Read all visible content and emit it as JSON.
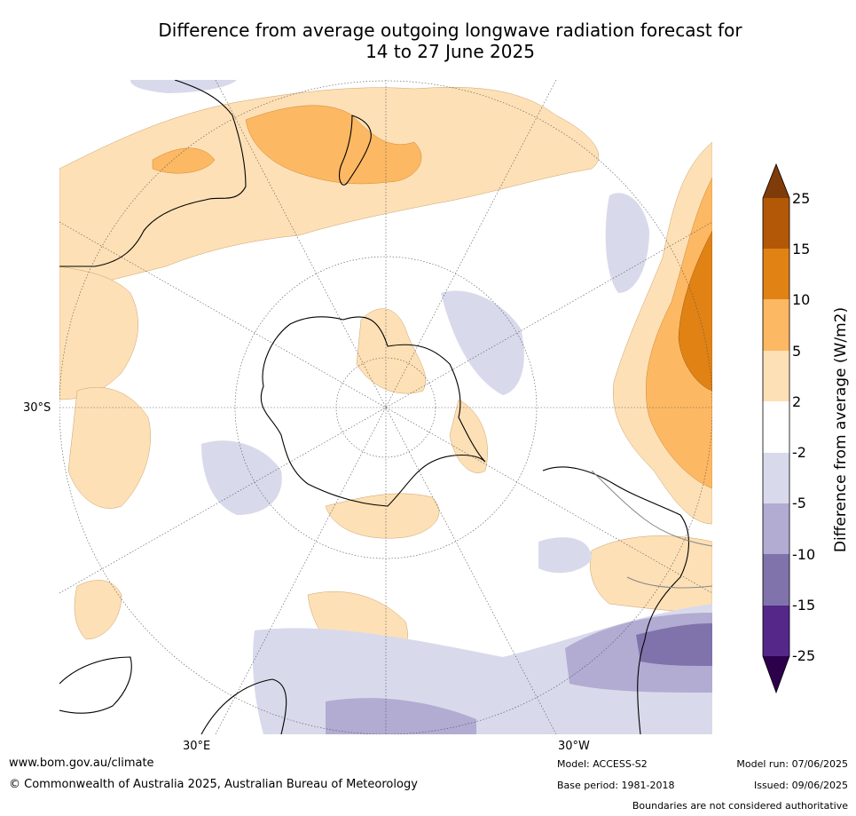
{
  "title": {
    "line1": "Difference from average outgoing longwave radiation forecast for",
    "line2": "14 to 27 June 2025"
  },
  "map": {
    "projection": "south polar stereographic",
    "lat_labels": [
      "30°S"
    ],
    "lon_labels": [
      "30°E",
      "30°W"
    ]
  },
  "colorbar": {
    "label": "Difference from average (W/m2)",
    "ticks": [
      "25",
      "15",
      "10",
      "5",
      "2",
      "-2",
      "-5",
      "-10",
      "-15",
      "-25"
    ],
    "colors": {
      "gt25": "#7f3b08",
      "15_25": "#b35806",
      "10_15": "#e08214",
      "5_10": "#fdb863",
      "2_5": "#fee0b6",
      "neutral": "#ffffff",
      "m5_m2": "#d8daeb",
      "m10_m5": "#b2abd2",
      "m15_m10": "#8073ac",
      "m25_m15": "#542788",
      "lt_m25": "#2d004b"
    }
  },
  "footer": {
    "website": "www.bom.gov.au/climate",
    "copyright": "© Commonwealth of Australia 2025, Australian Bureau of Meteorology",
    "model": "Model: ACCESS-S2",
    "base_period": "Base period: 1981-2018",
    "model_run": "Model run: 07/06/2025",
    "issued": "Issued: 09/06/2025",
    "disclaimer": "Boundaries are not considered authoritative"
  }
}
